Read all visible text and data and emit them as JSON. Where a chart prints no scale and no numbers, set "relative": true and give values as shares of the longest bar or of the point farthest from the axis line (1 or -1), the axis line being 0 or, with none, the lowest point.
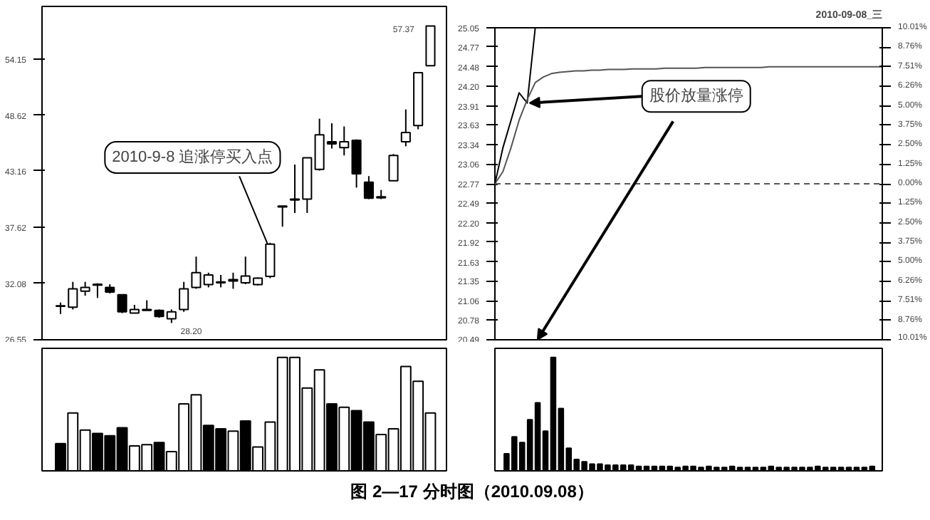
{
  "chart_data": [
    {
      "type": "candlestick",
      "categories": [
        null,
        null,
        null,
        null,
        null,
        null,
        null,
        null,
        null,
        null,
        null,
        null,
        null,
        null,
        null,
        null,
        null,
        null,
        null,
        null,
        null,
        null,
        null,
        null,
        null,
        null,
        null,
        null,
        null,
        null,
        null
      ],
      "ohlc": [
        [
          29.84,
          30.21,
          29.08,
          29.89
        ],
        [
          29.75,
          32.24,
          29.53,
          31.56
        ],
        [
          31.33,
          32.24,
          30.88,
          31.7
        ],
        [
          32.01,
          32.1,
          30.66,
          31.92
        ],
        [
          31.7,
          32.01,
          31.11,
          31.24
        ],
        [
          30.97,
          30.97,
          29.17,
          29.3
        ],
        [
          29.17,
          29.98,
          29.17,
          29.53
        ],
        [
          29.44,
          30.43,
          29.44,
          29.53
        ],
        [
          29.44,
          29.53,
          28.71,
          28.85
        ],
        [
          28.62,
          29.53,
          28.2,
          29.3
        ],
        [
          29.53,
          32.24,
          29.3,
          31.56
        ],
        [
          31.7,
          34.72,
          31.56,
          33.14
        ],
        [
          31.97,
          33.14,
          31.7,
          32.92
        ],
        [
          32.24,
          32.92,
          31.7,
          32.15
        ],
        [
          32.46,
          33.14,
          31.56,
          32.33
        ],
        [
          32.15,
          34.72,
          32.01,
          32.82
        ],
        [
          31.97,
          32.69,
          31.88,
          32.6
        ],
        [
          32.78,
          36.08,
          32.6,
          35.94
        ],
        [
          39.6,
          39.69,
          37.66,
          39.69
        ],
        [
          40.28,
          43.76,
          39.01,
          40.37
        ],
        [
          40.37,
          44.43,
          39.01,
          44.43
        ],
        [
          43.3,
          48.27,
          43.17,
          46.69
        ],
        [
          46.01,
          47.82,
          45.34,
          45.79
        ],
        [
          45.43,
          47.51,
          44.66,
          46.01
        ],
        [
          46.15,
          46.24,
          41.5,
          42.85
        ],
        [
          42.04,
          42.63,
          40.37,
          40.46
        ],
        [
          40.5,
          41.27,
          40.37,
          40.59
        ],
        [
          42.18,
          44.8,
          42.18,
          44.66
        ],
        [
          46.01,
          49.18,
          45.56,
          46.92
        ],
        [
          47.6,
          52.79,
          47.23,
          52.79
        ],
        [
          53.47,
          57.37,
          53.47,
          57.37
        ]
      ],
      "ylim": [
        26.55,
        59.3
      ],
      "yticks": [
        26.55,
        32.08,
        37.62,
        43.16,
        48.62,
        54.15
      ],
      "tick_labels": "y",
      "annotations": [
        "2010-9-8 追涨停买入点",
        "57.37",
        "28.20",
        "图 2—17 分时图（2010.09.08）"
      ]
    },
    {
      "type": "bar",
      "relative": true,
      "tick_labels": false,
      "categories": [
        null,
        null,
        null,
        null,
        null,
        null,
        null,
        null,
        null,
        null,
        null,
        null,
        null,
        null,
        null,
        null,
        null,
        null,
        null,
        null,
        null,
        null,
        null,
        null,
        null,
        null,
        null,
        null,
        null,
        null,
        null
      ],
      "values": [
        0.24,
        0.51,
        0.36,
        0.33,
        0.31,
        0.38,
        0.22,
        0.23,
        0.25,
        0.17,
        0.59,
        0.67,
        0.4,
        0.37,
        0.35,
        0.44,
        0.21,
        0.43,
        1.0,
        1.0,
        0.73,
        0.89,
        0.59,
        0.56,
        0.53,
        0.43,
        0.32,
        0.37,
        0.92,
        0.79,
        0.51
      ],
      "colors": [
        "#000000",
        "#ffffff",
        "#ffffff",
        "#000000",
        "#000000",
        "#000000",
        "#ffffff",
        "#ffffff",
        "#000000",
        "#ffffff",
        "#ffffff",
        "#ffffff",
        "#000000",
        "#000000",
        "#ffffff",
        "#000000",
        "#ffffff",
        "#ffffff",
        "#ffffff",
        "#ffffff",
        "#ffffff",
        "#ffffff",
        "#000000",
        "#ffffff",
        "#000000",
        "#000000",
        "#ffffff",
        "#ffffff",
        "#ffffff",
        "#ffffff",
        "#ffffff"
      ]
    },
    {
      "type": "line",
      "title": "2010-09-08_三",
      "ylim": [
        20.49,
        25.05
      ],
      "tick_labels": "y",
      "categories": [
        null,
        null,
        null,
        null,
        null,
        null,
        null,
        null,
        null,
        null,
        null,
        null,
        null,
        null,
        null,
        null,
        null,
        null,
        null,
        null,
        null,
        null,
        null,
        null,
        null,
        null,
        null,
        null,
        null,
        null,
        null,
        null,
        null,
        null,
        null,
        null,
        null,
        null,
        null,
        null,
        null,
        null,
        null,
        null,
        null,
        null,
        null,
        null,
        null
      ],
      "yticks": [
        25.05,
        24.77,
        24.48,
        {
          "value": 24.2,
          "label": "24.20"
        },
        23.91,
        23.63,
        23.34,
        23.06,
        22.77,
        22.49,
        {
          "value": 22.2,
          "label": "22.20"
        },
        21.92,
        21.63,
        21.35,
        21.06,
        20.78,
        20.49
      ],
      "y2lim": [
        -10.01,
        10.01
      ],
      "y2ticks": [
        {
          "value": 10.01,
          "label": "10.01%"
        },
        {
          "value": 8.76,
          "label": "8.76%"
        },
        {
          "value": 7.51,
          "label": "7.51%"
        },
        {
          "value": 6.26,
          "label": "6.26%"
        },
        {
          "value": 5.0,
          "label": "5.00%"
        },
        {
          "value": 3.75,
          "label": "3.75%"
        },
        {
          "value": 2.5,
          "label": "2.50%"
        },
        {
          "value": 1.25,
          "label": "1.25%"
        },
        {
          "value": 0,
          "label": "0.00%"
        },
        {
          "value": -1.25,
          "label": "1.25%"
        },
        {
          "value": -2.5,
          "label": "2.50%"
        },
        {
          "value": -3.75,
          "label": "3.75%"
        },
        {
          "value": -5.0,
          "label": "5.00%"
        },
        {
          "value": -6.26,
          "label": "6.26%"
        },
        {
          "value": -7.51,
          "label": "7.51%"
        },
        {
          "value": -8.76,
          "label": "8.76%"
        },
        {
          "value": -10.01,
          "label": "10.01%"
        }
      ],
      "series": [
        {
          "color": "#000000",
          "values": [
            22.77,
            23.3,
            23.7,
            24.1,
            23.95,
            25.05,
            25.05,
            25.05,
            25.05,
            25.05,
            25.05,
            25.05,
            25.05,
            25.05,
            25.05,
            25.05,
            25.05,
            25.05,
            25.05,
            25.05,
            25.05,
            25.05,
            25.05,
            25.05,
            25.05,
            25.05,
            25.05,
            25.05,
            25.05,
            25.05,
            25.05,
            25.05,
            25.05,
            25.05,
            25.05,
            25.05,
            25.05,
            25.05,
            25.05,
            25.05,
            25.05,
            25.05,
            25.05,
            25.05,
            25.05,
            25.05,
            25.05,
            25.05,
            25.05
          ]
        },
        {
          "color": "#555555",
          "values": [
            22.77,
            22.95,
            23.3,
            23.7,
            24.0,
            24.25,
            24.33,
            24.38,
            24.4,
            24.41,
            24.42,
            24.42,
            24.43,
            24.43,
            24.44,
            24.44,
            24.44,
            24.45,
            24.45,
            24.45,
            24.45,
            24.46,
            24.46,
            24.46,
            24.46,
            24.46,
            24.47,
            24.47,
            24.47,
            24.47,
            24.47,
            24.47,
            24.47,
            24.47,
            24.48,
            24.48,
            24.48,
            24.48,
            24.48,
            24.48,
            24.48,
            24.48,
            24.48,
            24.48,
            24.48,
            24.48,
            24.48,
            24.48,
            24.48
          ]
        }
      ],
      "ref_lines": [
        {
          "axis": "y",
          "value": 22.77,
          "line_style": "dashed",
          "color": "#555555"
        }
      ],
      "annotations": [
        "股价放量涨停"
      ]
    },
    {
      "type": "bar",
      "relative": true,
      "tick_labels": false,
      "color": "#000000",
      "categories": [
        null,
        null,
        null,
        null,
        null,
        null,
        null,
        null,
        null,
        null,
        null,
        null,
        null,
        null,
        null,
        null,
        null,
        null,
        null,
        null,
        null,
        null,
        null,
        null,
        null,
        null,
        null,
        null,
        null,
        null,
        null,
        null,
        null,
        null,
        null,
        null,
        null,
        null,
        null,
        null,
        null,
        null,
        null,
        null,
        null,
        null,
        null,
        null
      ],
      "values": [
        0.15,
        0.3,
        0.25,
        0.45,
        0.6,
        0.35,
        1.0,
        0.55,
        0.2,
        0.1,
        0.08,
        0.06,
        0.06,
        0.05,
        0.05,
        0.05,
        0.05,
        0.04,
        0.04,
        0.04,
        0.04,
        0.04,
        0.03,
        0.04,
        0.04,
        0.03,
        0.04,
        0.03,
        0.03,
        0.04,
        0.03,
        0.03,
        0.03,
        0.03,
        0.04,
        0.03,
        0.03,
        0.03,
        0.03,
        0.03,
        0.04,
        0.03,
        0.03,
        0.03,
        0.03,
        0.03,
        0.03,
        0.04
      ]
    }
  ]
}
